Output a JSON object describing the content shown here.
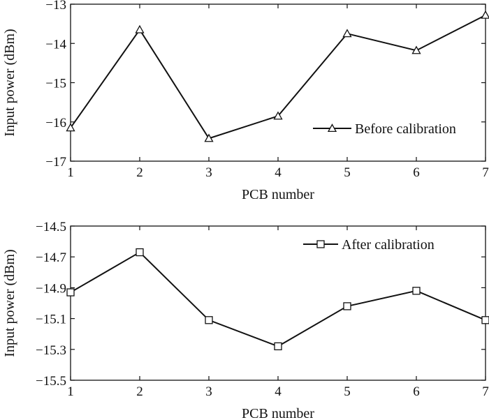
{
  "chart_data": [
    {
      "type": "line",
      "xlabel": "PCB number",
      "ylabel": "Input power (dBm)",
      "x": [
        1,
        2,
        3,
        4,
        5,
        6,
        7
      ],
      "xlim": [
        1,
        7
      ],
      "xticks": [
        "1",
        "2",
        "3",
        "4",
        "5",
        "6",
        "7"
      ],
      "ylim": [
        -17,
        -13
      ],
      "yticks": [
        "−17",
        "−16",
        "−15",
        "−14",
        "−13"
      ],
      "grid": false,
      "legend_position": "right",
      "series": [
        {
          "name": "Before calibration",
          "marker": "triangle",
          "color": "#111111",
          "values": [
            -16.15,
            -13.65,
            -16.42,
            -15.85,
            -13.75,
            -14.18,
            -13.28
          ]
        }
      ]
    },
    {
      "type": "line",
      "xlabel": "PCB number",
      "ylabel": "Input power (dBm)",
      "x": [
        1,
        2,
        3,
        4,
        5,
        6,
        7
      ],
      "xlim": [
        1,
        7
      ],
      "xticks": [
        "1",
        "2",
        "3",
        "4",
        "5",
        "6",
        "7"
      ],
      "ylim": [
        -15.5,
        -14.5
      ],
      "yticks": [
        "−15.5",
        "−15.3",
        "−15.1",
        "−14.9",
        "−14.7",
        "−14.5"
      ],
      "grid": false,
      "legend_position": "top-right",
      "series": [
        {
          "name": "After calibration",
          "marker": "square",
          "color": "#111111",
          "values": [
            -14.93,
            -14.67,
            -15.11,
            -15.28,
            -15.02,
            -14.92,
            -15.11
          ]
        }
      ]
    }
  ]
}
